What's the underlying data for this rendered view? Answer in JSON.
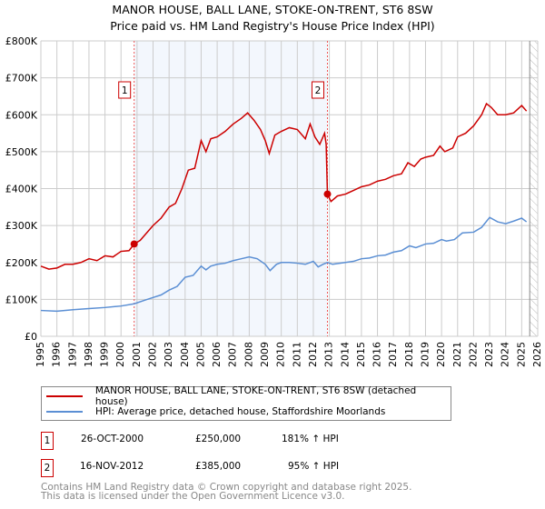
{
  "chart_data": {
    "type": "line",
    "title": "MANOR HOUSE, BALL LANE, STOKE-ON-TRENT, ST6 8SW",
    "subtitle": "Price paid vs. HM Land Registry's House Price Index (HPI)",
    "xlim": [
      1995,
      2026
    ],
    "ylim": [
      0,
      800000
    ],
    "x_ticks": [
      "1995",
      "1996",
      "1997",
      "1998",
      "1999",
      "2000",
      "2001",
      "2002",
      "2003",
      "2004",
      "2005",
      "2006",
      "2007",
      "2008",
      "2009",
      "2010",
      "2011",
      "2012",
      "2013",
      "2014",
      "2015",
      "2016",
      "2017",
      "2018",
      "2019",
      "2020",
      "2021",
      "2022",
      "2023",
      "2024",
      "2025",
      "2026"
    ],
    "y_ticks": [
      {
        "v": 0,
        "label": "£0"
      },
      {
        "v": 100000,
        "label": "£100K"
      },
      {
        "v": 200000,
        "label": "£200K"
      },
      {
        "v": 300000,
        "label": "£300K"
      },
      {
        "v": 400000,
        "label": "£400K"
      },
      {
        "v": 500000,
        "label": "£500K"
      },
      {
        "v": 600000,
        "label": "£600K"
      },
      {
        "v": 700000,
        "label": "£700K"
      },
      {
        "v": 800000,
        "label": "£800K"
      }
    ],
    "grid": true,
    "shaded_range": [
      2000.82,
      2012.88
    ],
    "hatched_from": 2025.5,
    "series": [
      {
        "name": "MANOR HOUSE, BALL LANE, STOKE-ON-TRENT, ST6 8SW (detached house)",
        "color": "#cc0000",
        "x": [
          1995,
          1995.5,
          1996,
          1996.5,
          1997,
          1997.5,
          1998,
          1998.5,
          1999,
          1999.5,
          2000,
          2000.5,
          2000.82,
          2001.2,
          2001.6,
          2002,
          2002.5,
          2003,
          2003.4,
          2003.8,
          2004.2,
          2004.6,
          2005,
          2005.3,
          2005.6,
          2006,
          2006.5,
          2007,
          2007.5,
          2007.9,
          2008.3,
          2008.7,
          2009,
          2009.25,
          2009.6,
          2010,
          2010.5,
          2011,
          2011.5,
          2011.8,
          2012.1,
          2012.4,
          2012.7,
          2012.8,
          2012.88,
          2013.1,
          2013.5,
          2014,
          2014.5,
          2015,
          2015.5,
          2016,
          2016.5,
          2017,
          2017.5,
          2017.9,
          2018.3,
          2018.7,
          2019,
          2019.5,
          2019.9,
          2020.2,
          2020.7,
          2021,
          2021.5,
          2022,
          2022.5,
          2022.8,
          2023.1,
          2023.5,
          2024,
          2024.5,
          2025,
          2025.3
        ],
        "y": [
          190000,
          182000,
          185000,
          195000,
          195000,
          200000,
          210000,
          205000,
          218000,
          215000,
          230000,
          232000,
          250000,
          260000,
          280000,
          300000,
          320000,
          350000,
          360000,
          400000,
          450000,
          455000,
          530000,
          500000,
          535000,
          540000,
          555000,
          575000,
          590000,
          605000,
          585000,
          560000,
          530000,
          495000,
          545000,
          555000,
          565000,
          560000,
          535000,
          575000,
          540000,
          520000,
          550000,
          520000,
          385000,
          365000,
          380000,
          385000,
          395000,
          405000,
          410000,
          420000,
          425000,
          435000,
          440000,
          470000,
          460000,
          480000,
          485000,
          490000,
          515000,
          500000,
          510000,
          540000,
          550000,
          570000,
          600000,
          630000,
          620000,
          600000,
          600000,
          605000,
          625000,
          610000
        ]
      },
      {
        "name": "HPI: Average price, detached house, Staffordshire Moorlands",
        "color": "#5b8fd4",
        "x": [
          1995,
          1996,
          1997,
          1998,
          1999,
          2000,
          2000.82,
          2001.5,
          2002,
          2002.5,
          2003,
          2003.5,
          2004,
          2004.5,
          2005,
          2005.3,
          2005.6,
          2006,
          2006.5,
          2007,
          2007.5,
          2008,
          2008.5,
          2009,
          2009.3,
          2009.7,
          2010,
          2010.5,
          2011,
          2011.5,
          2012,
          2012.3,
          2012.6,
          2012.88,
          2013.2,
          2014,
          2014.5,
          2015,
          2015.5,
          2016,
          2016.5,
          2017,
          2017.5,
          2018,
          2018.4,
          2019,
          2019.5,
          2020,
          2020.3,
          2020.8,
          2021.3,
          2022,
          2022.5,
          2023,
          2023.5,
          2024,
          2024.5,
          2025,
          2025.3
        ],
        "y": [
          70000,
          68000,
          72000,
          75000,
          78000,
          82000,
          88000,
          98000,
          105000,
          112000,
          125000,
          135000,
          160000,
          165000,
          190000,
          180000,
          190000,
          195000,
          198000,
          205000,
          210000,
          215000,
          210000,
          195000,
          178000,
          195000,
          200000,
          200000,
          198000,
          195000,
          203000,
          188000,
          195000,
          200000,
          195000,
          200000,
          203000,
          210000,
          212000,
          218000,
          220000,
          228000,
          232000,
          245000,
          240000,
          250000,
          252000,
          262000,
          258000,
          262000,
          280000,
          282000,
          295000,
          322000,
          310000,
          305000,
          312000,
          320000,
          310000
        ]
      }
    ],
    "sales": [
      {
        "id": "1",
        "date": "26-OCT-2000",
        "price": "£250,000",
        "hpi": "181% ↑ HPI",
        "x": 2000.82,
        "y": 250000
      },
      {
        "id": "2",
        "date": "16-NOV-2012",
        "price": "£385,000",
        "hpi": "95% ↑ HPI",
        "x": 2012.88,
        "y": 385000
      }
    ]
  },
  "footer": [
    "Contains HM Land Registry data © Crown copyright and database right 2025.",
    "This data is licensed under the Open Government Licence v3.0."
  ]
}
